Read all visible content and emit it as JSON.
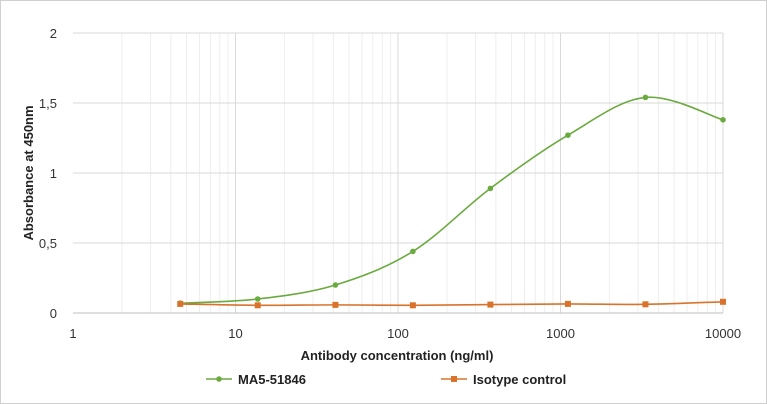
{
  "chart_data": {
    "type": "line",
    "title": "",
    "xlabel": "Antibody concentration (ng/ml)",
    "ylabel": "Absorbance at 450nm",
    "x_scale": "log",
    "xlim": [
      1,
      10000
    ],
    "ylim": [
      0,
      2
    ],
    "x_ticks": [
      1,
      10,
      100,
      1000,
      10000
    ],
    "x_tick_labels": [
      "1",
      "10",
      "100",
      "1000",
      "10000"
    ],
    "y_ticks": [
      0,
      0.5,
      1,
      1.5,
      2
    ],
    "y_tick_labels": [
      "0",
      "0,5",
      "1",
      "1,5",
      "2"
    ],
    "grid": true,
    "legend_position": "bottom",
    "x": [
      4.57,
      13.7,
      41.2,
      123.5,
      370.4,
      1111,
      3333,
      10000
    ],
    "series": [
      {
        "name": "MA5-51846",
        "color": "#6aaa3f",
        "marker": "circle",
        "values": [
          0.07,
          0.1,
          0.2,
          0.44,
          0.89,
          1.27,
          1.54,
          1.38
        ]
      },
      {
        "name": "Isotype control",
        "color": "#d9732b",
        "marker": "square",
        "values": [
          0.065,
          0.055,
          0.058,
          0.055,
          0.06,
          0.065,
          0.062,
          0.08
        ]
      }
    ]
  }
}
